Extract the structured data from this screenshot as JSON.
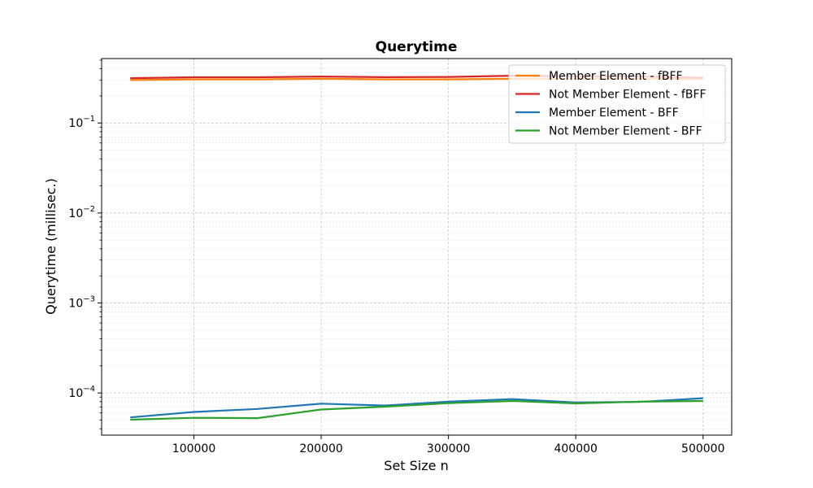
{
  "chart_data": {
    "type": "line",
    "title": "Querytime",
    "xlabel": "Set Size n",
    "ylabel": "Querytime (millisec.)",
    "yscale": "log",
    "xlim": [
      27500,
      522500
    ],
    "ylim": [
      3.4e-05,
      0.52
    ],
    "grid": true,
    "legend_position": "top-right",
    "x_ticks": [
      {
        "value": 100000,
        "label": "100000"
      },
      {
        "value": 200000,
        "label": "200000"
      },
      {
        "value": 300000,
        "label": "300000"
      },
      {
        "value": 400000,
        "label": "400000"
      },
      {
        "value": 500000,
        "label": "500000"
      }
    ],
    "y_ticks": [
      {
        "value": 0.0001,
        "base": "10",
        "exp": "−4"
      },
      {
        "value": 0.001,
        "base": "10",
        "exp": "−3"
      },
      {
        "value": 0.01,
        "base": "10",
        "exp": "−2"
      },
      {
        "value": 0.1,
        "base": "10",
        "exp": "−1"
      }
    ],
    "x": [
      50000,
      100000,
      150000,
      200000,
      250000,
      300000,
      350000,
      400000,
      450000,
      500000
    ],
    "series": [
      {
        "name": "Member Element - fBFF",
        "color": "#ff7f0e",
        "values": [
          0.3,
          0.305,
          0.305,
          0.31,
          0.305,
          0.305,
          0.31,
          0.31,
          0.31,
          0.31
        ]
      },
      {
        "name": "Not Member Element - fBFF",
        "color": "#d62728",
        "values": [
          0.315,
          0.322,
          0.322,
          0.328,
          0.323,
          0.325,
          0.335,
          0.33,
          0.33,
          0.318
        ]
      },
      {
        "name": "Member Element - BFF",
        "color": "#1f77b4",
        "values": [
          5.35e-05,
          6.15e-05,
          6.65e-05,
          7.6e-05,
          7.25e-05,
          8e-05,
          8.55e-05,
          7.85e-05,
          7.95e-05,
          8.75e-05
        ]
      },
      {
        "name": "Not Member Element - BFF",
        "color": "#2ca02c",
        "values": [
          5.05e-05,
          5.3e-05,
          5.25e-05,
          6.55e-05,
          7.05e-05,
          7.7e-05,
          8.15e-05,
          7.65e-05,
          8e-05,
          8.15e-05
        ]
      }
    ]
  }
}
